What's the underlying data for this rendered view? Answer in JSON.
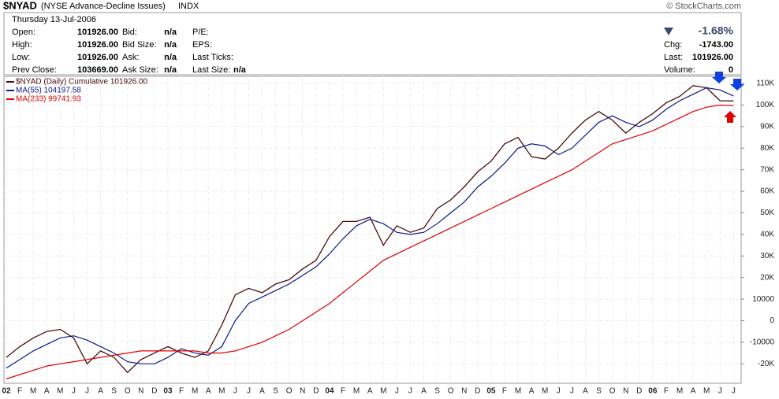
{
  "header": {
    "symbol": "$NYAD",
    "title": "(NYSE Advance-Decline Issues)",
    "exchange": "INDX",
    "source": "© StockCharts.com",
    "date": "Thursday 13-Jul-2006",
    "columns": [
      [
        {
          "label": "Open:",
          "value": "101926.00"
        },
        {
          "label": "High:",
          "value": "101926.00"
        },
        {
          "label": "Low:",
          "value": "101926.00"
        },
        {
          "label": "Prev Close:",
          "value": "103669.00"
        }
      ],
      [
        {
          "label": "Bid:",
          "value": "n/a"
        },
        {
          "label": "Bid Size:",
          "value": "n/a"
        },
        {
          "label": "Ask:",
          "value": "n/a"
        },
        {
          "label": "Ask Size:",
          "value": "n/a"
        }
      ],
      [
        {
          "label": "P/E:"
        },
        {
          "label": "EPS:"
        },
        {
          "label": "Last Ticks:"
        },
        {
          "label": "Last Size:",
          "value": "n/a"
        }
      ]
    ],
    "change_pct": "-1.68%",
    "quote": [
      {
        "label": "Chg:",
        "value": "-1743.00"
      },
      {
        "label": "Last:",
        "value": "101926.00"
      },
      {
        "label": "Volume:",
        "value": "0"
      }
    ]
  },
  "chart_data": {
    "type": "line",
    "categories": [
      "02",
      "F",
      "M",
      "A",
      "M",
      "J",
      "J",
      "A",
      "S",
      "O",
      "N",
      "D",
      "03",
      "F",
      "M",
      "A",
      "M",
      "J",
      "J",
      "A",
      "S",
      "O",
      "N",
      "D",
      "04",
      "F",
      "M",
      "A",
      "M",
      "J",
      "J",
      "A",
      "S",
      "O",
      "N",
      "D",
      "05",
      "F",
      "M",
      "A",
      "M",
      "J",
      "J",
      "A",
      "S",
      "O",
      "N",
      "D",
      "06",
      "F",
      "M",
      "A",
      "M",
      "J",
      "J"
    ],
    "series": [
      {
        "name": "$NYAD (Daily) Cumulative 101926.00",
        "color": "#4a0c0c",
        "values": [
          -17000,
          -12000,
          -8000,
          -5000,
          -4000,
          -8000,
          -20000,
          -14000,
          -17000,
          -24000,
          -18000,
          -15000,
          -12000,
          -15000,
          -17000,
          -14000,
          -2000,
          12000,
          15000,
          13000,
          17000,
          19000,
          24000,
          28000,
          39000,
          46000,
          46000,
          48000,
          35000,
          44000,
          41000,
          43000,
          52000,
          56000,
          62000,
          69000,
          74000,
          82000,
          85000,
          76000,
          75000,
          80000,
          87000,
          93000,
          97000,
          93000,
          87000,
          92000,
          96000,
          101000,
          104000,
          109000,
          108000,
          102000,
          101926
        ]
      },
      {
        "name": "MA(55) 104197.58",
        "color": "#0a1a8c",
        "values": [
          -22000,
          -18000,
          -14000,
          -11000,
          -8000,
          -7000,
          -9000,
          -12000,
          -15000,
          -19000,
          -20000,
          -20000,
          -17000,
          -13000,
          -15000,
          -16000,
          -12000,
          0,
          8000,
          11000,
          14000,
          17000,
          21000,
          25000,
          31000,
          38000,
          44000,
          47000,
          45000,
          41000,
          40000,
          41000,
          45000,
          50000,
          55000,
          62000,
          67000,
          73000,
          80000,
          82000,
          81000,
          77000,
          80000,
          86000,
          92000,
          95000,
          92000,
          90000,
          93000,
          98000,
          102000,
          105000,
          108000,
          107000,
          104197.58
        ]
      },
      {
        "name": "MA(233) 99741.93",
        "color": "#e00000",
        "values": [
          -27000,
          -25000,
          -23000,
          -21000,
          -20000,
          -19000,
          -18000,
          -17000,
          -16000,
          -15000,
          -14000,
          -14000,
          -14000,
          -14000,
          -14000,
          -15000,
          -15000,
          -14000,
          -12000,
          -10000,
          -7000,
          -4000,
          0,
          4000,
          8000,
          13000,
          18000,
          23000,
          28000,
          31000,
          34000,
          37000,
          40000,
          43000,
          46000,
          49000,
          52000,
          55000,
          58000,
          61000,
          64000,
          67000,
          70000,
          74000,
          78000,
          82000,
          84000,
          86000,
          88000,
          91000,
          94000,
          97000,
          99000,
          100000,
          99741.93
        ]
      }
    ],
    "ylim": [
      -29000,
      113300
    ],
    "yticks": [
      {
        "value": -20000,
        "label": "-20K"
      },
      {
        "value": -10000,
        "label": "-10000"
      },
      0,
      {
        "value": 10000,
        "label": "10000"
      },
      {
        "value": 20000,
        "label": "20K"
      },
      {
        "value": 30000,
        "label": "30K"
      },
      {
        "value": 40000,
        "label": "40K"
      },
      {
        "value": 50000,
        "label": "50K"
      },
      {
        "value": 60000,
        "label": "60K"
      },
      {
        "value": 70000,
        "label": "70K"
      },
      {
        "value": 80000,
        "label": "80K"
      },
      {
        "value": 90000,
        "label": "90K"
      },
      {
        "value": 100000,
        "label": "100K"
      },
      {
        "value": 110000,
        "label": "110K"
      }
    ],
    "grid": true
  }
}
